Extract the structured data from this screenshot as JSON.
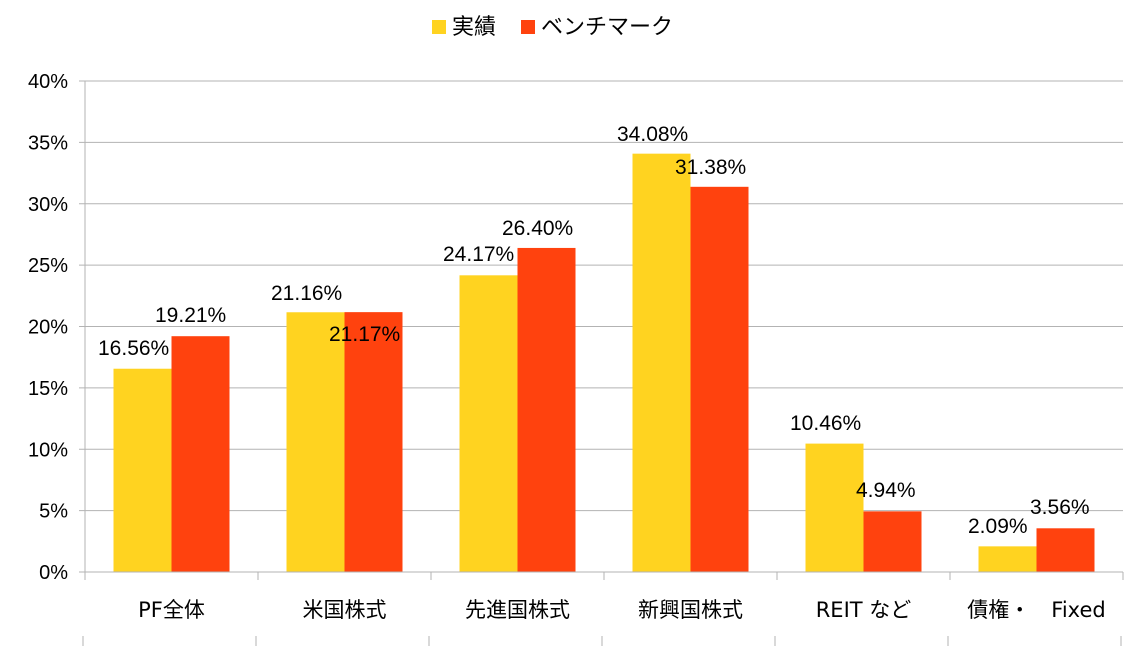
{
  "chart_data": {
    "type": "bar",
    "title": "",
    "xlabel": "",
    "ylabel": "",
    "categories": [
      "PF全体",
      "米国株式",
      "先進国株式",
      "新興国株式",
      "REIT など",
      "債権・　Fixed"
    ],
    "series": [
      {
        "name": "実績",
        "color": "#FFD320",
        "values": [
          16.56,
          21.16,
          24.17,
          34.08,
          10.46,
          2.09
        ],
        "labels": [
          "16.56%",
          "21.16%",
          "24.17%",
          "34.08%",
          "10.46%",
          "2.09%"
        ]
      },
      {
        "name": "ベンチマーク",
        "color": "#FF420E",
        "values": [
          19.21,
          21.17,
          26.4,
          31.38,
          4.94,
          3.56
        ],
        "labels": [
          "19.21%",
          "21.17%",
          "26.40%",
          "31.38%",
          "4.94%",
          "3.56%"
        ]
      }
    ],
    "ylim": [
      0,
      40
    ],
    "yticks": [
      0,
      5,
      10,
      15,
      20,
      25,
      30,
      35,
      40
    ],
    "ytick_labels": [
      "0%",
      "5%",
      "10%",
      "15%",
      "20%",
      "25%",
      "30%",
      "35%",
      "40%"
    ],
    "grid": true,
    "legend_position": "top-center"
  }
}
